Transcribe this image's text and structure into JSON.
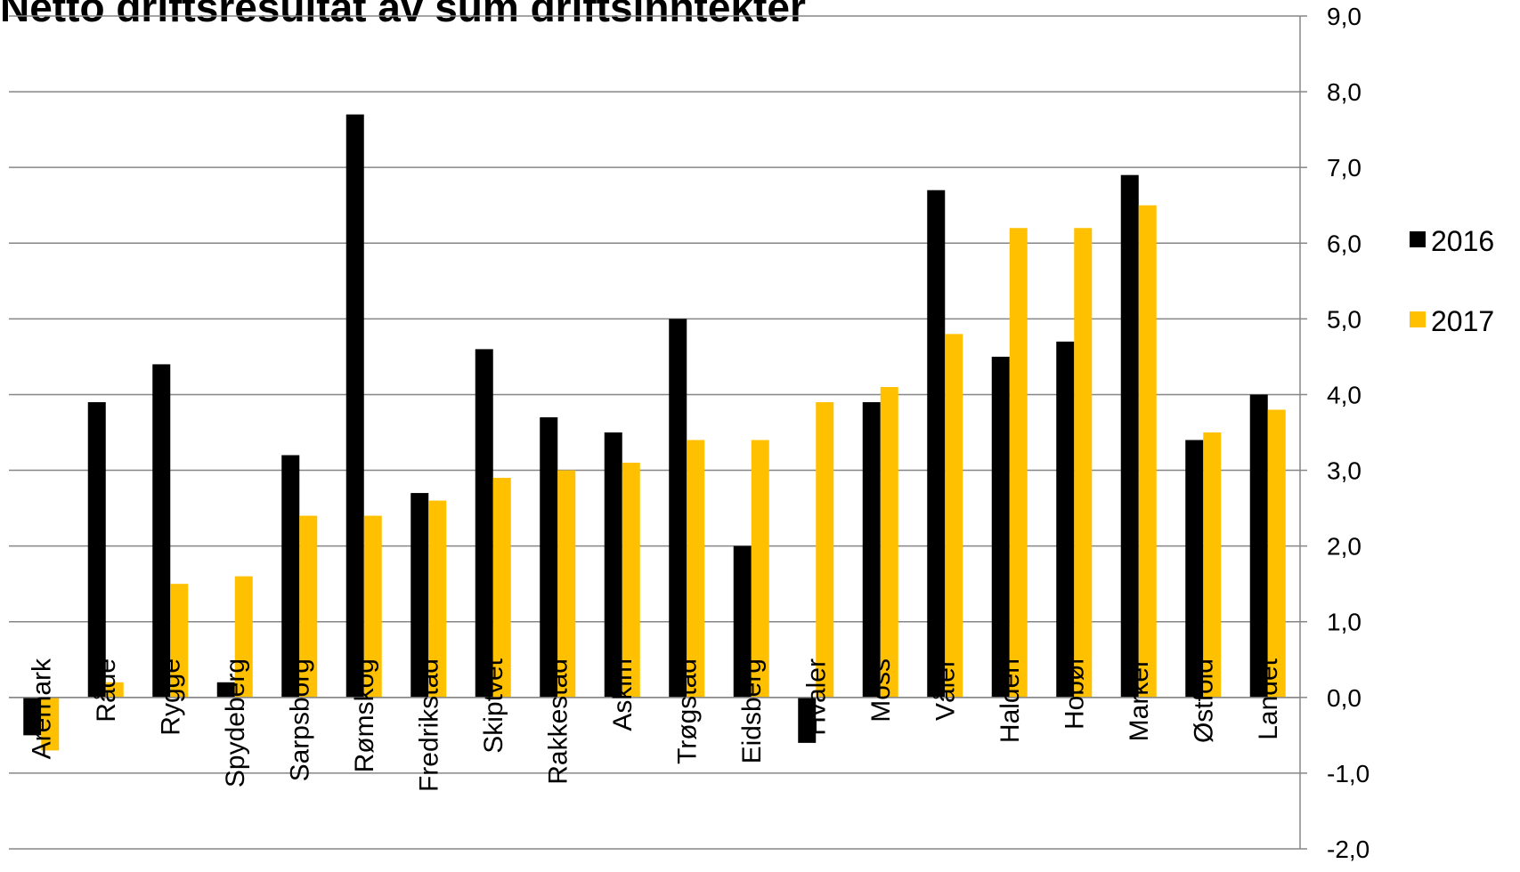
{
  "chart_data": {
    "type": "bar",
    "title": "Netto driftsresultat av sum driftsinntekter",
    "categories": [
      "Aremark",
      "Råde",
      "Rygge",
      "Spydeberg",
      "Sarpsborg",
      "Rømskog",
      "Fredrikstad",
      "Skiptvet",
      "Rakkestad",
      "Askim",
      "Trøgstad",
      "Eidsberg",
      "Hvaler",
      "Moss",
      "Våler",
      "Halden",
      "Hobøl",
      "Marker",
      "Østfold",
      "Landet"
    ],
    "series": [
      {
        "name": "2016",
        "color": "#000000",
        "values": [
          -0.5,
          3.9,
          4.4,
          0.2,
          3.2,
          7.7,
          2.7,
          4.6,
          3.7,
          3.5,
          5.0,
          2.0,
          -0.6,
          3.9,
          6.7,
          4.5,
          4.7,
          6.9,
          3.4,
          4.0
        ]
      },
      {
        "name": "2017",
        "color": "#FFC000",
        "values": [
          -0.7,
          0.2,
          1.5,
          1.6,
          2.4,
          2.4,
          2.6,
          2.9,
          3.0,
          3.1,
          3.4,
          3.4,
          3.9,
          4.1,
          4.8,
          6.2,
          6.2,
          6.5,
          3.5,
          3.8
        ]
      }
    ],
    "y_ticks": [
      "9,0",
      "8,0",
      "7,0",
      "6,0",
      "5,0",
      "4,0",
      "3,0",
      "2,0",
      "1,0",
      "0,0",
      "-1,0",
      "-2,0"
    ],
    "ylim": [
      -2,
      9
    ],
    "y_axis_side": "right",
    "grid": true,
    "legend_position": "right"
  }
}
